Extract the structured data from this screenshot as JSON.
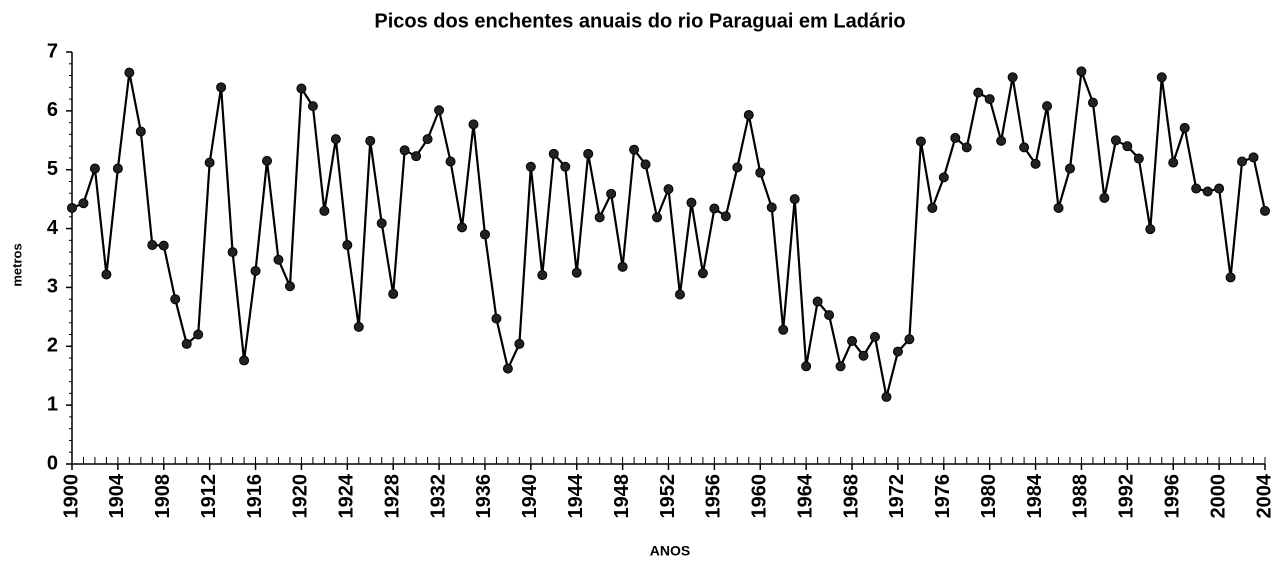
{
  "chart_data": {
    "type": "line",
    "title": "Picos dos enchentes anuais do  rio Paraguai em Ladário",
    "xlabel": "ANOS",
    "ylabel": "metros",
    "x": [
      1900,
      1901,
      1902,
      1903,
      1904,
      1905,
      1906,
      1907,
      1908,
      1909,
      1910,
      1911,
      1912,
      1913,
      1914,
      1915,
      1916,
      1917,
      1918,
      1919,
      1920,
      1921,
      1922,
      1923,
      1924,
      1925,
      1926,
      1927,
      1928,
      1929,
      1930,
      1931,
      1932,
      1933,
      1934,
      1935,
      1936,
      1937,
      1938,
      1939,
      1940,
      1941,
      1942,
      1943,
      1944,
      1945,
      1946,
      1947,
      1948,
      1949,
      1950,
      1951,
      1952,
      1953,
      1954,
      1955,
      1956,
      1957,
      1958,
      1959,
      1960,
      1961,
      1962,
      1963,
      1964,
      1965,
      1966,
      1967,
      1968,
      1969,
      1970,
      1971,
      1972,
      1973,
      1974,
      1975,
      1976,
      1977,
      1978,
      1979,
      1980,
      1981,
      1982,
      1983,
      1984,
      1985,
      1986,
      1987,
      1988,
      1989,
      1990,
      1991,
      1992,
      1993,
      1994,
      1995,
      1996,
      1997,
      1998,
      1999,
      2000,
      2001,
      2002,
      2003,
      2004
    ],
    "series": [
      {
        "name": "metros",
        "color": "#000000",
        "values": [
          4.35,
          4.43,
          5.02,
          3.22,
          5.02,
          6.65,
          5.65,
          3.72,
          3.71,
          2.8,
          2.04,
          2.2,
          5.12,
          6.4,
          3.6,
          1.76,
          3.28,
          5.15,
          3.47,
          3.02,
          6.38,
          6.08,
          4.3,
          5.52,
          3.72,
          2.33,
          5.49,
          4.09,
          2.89,
          5.33,
          5.23,
          5.52,
          6.01,
          5.14,
          4.02,
          5.77,
          3.9,
          2.47,
          1.62,
          2.04,
          5.05,
          3.21,
          5.27,
          5.05,
          3.25,
          5.27,
          4.19,
          4.59,
          3.35,
          5.34,
          5.09,
          4.19,
          4.67,
          2.88,
          4.44,
          3.24,
          4.34,
          4.21,
          5.04,
          5.93,
          4.95,
          4.36,
          2.28,
          4.5,
          1.66,
          2.76,
          2.53,
          1.66,
          2.09,
          1.84,
          2.16,
          1.14,
          1.91,
          2.12,
          5.48,
          4.35,
          4.87,
          5.54,
          5.38,
          6.31,
          6.2,
          5.49,
          6.57,
          5.38,
          5.1,
          6.08,
          4.35,
          5.02,
          6.67,
          6.14,
          4.52,
          5.5,
          5.4,
          5.19,
          3.99,
          6.57,
          5.12,
          5.71,
          4.68,
          4.63,
          4.68,
          3.17,
          5.14,
          5.21,
          4.3
        ]
      }
    ],
    "xlim": [
      1900,
      2004
    ],
    "xticks": [
      1900,
      1904,
      1908,
      1912,
      1916,
      1920,
      1924,
      1928,
      1932,
      1936,
      1940,
      1944,
      1948,
      1952,
      1956,
      1960,
      1964,
      1968,
      1972,
      1976,
      1980,
      1984,
      1988,
      1992,
      1996,
      2000,
      2004
    ],
    "ylim": [
      0,
      7
    ],
    "yticks": [
      0,
      1,
      2,
      3,
      4,
      5,
      6,
      7
    ],
    "grid": false
  }
}
